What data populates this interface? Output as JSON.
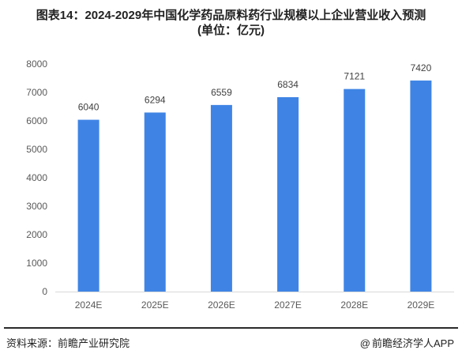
{
  "page": {
    "title": "图表14：2024-2029年中国化学药品原料药行业规模以上企业营业收入预测",
    "subtitle": "(单位：亿元)",
    "source": "资料来源：前瞻产业研究院",
    "credit": "前瞻经济学人APP",
    "credit_icon": "at-sign-icon"
  },
  "chart_data": {
    "type": "bar",
    "title": "图表14：2024-2029年中国化学药品原料药行业规模以上企业营业收入预测",
    "subtitle": "(单位：亿元)",
    "categories": [
      "2024E",
      "2025E",
      "2026E",
      "2027E",
      "2028E",
      "2029E"
    ],
    "values": [
      6040,
      6294,
      6559,
      6834,
      7121,
      7420
    ],
    "data_labels": [
      "6040",
      "6294",
      "6559",
      "6834",
      "7121",
      "7420"
    ],
    "ylim": [
      0,
      8000
    ],
    "yticks": [
      "0",
      "1000",
      "2000",
      "3000",
      "4000",
      "5000",
      "6000",
      "7000",
      "8000"
    ],
    "xlabel": "",
    "ylabel": "",
    "grid": false,
    "legend": "none",
    "colors": {
      "bar": "#3f84e5",
      "axis": "#d9d9d9",
      "tick_text": "#595959",
      "label_text": "#404040"
    }
  }
}
